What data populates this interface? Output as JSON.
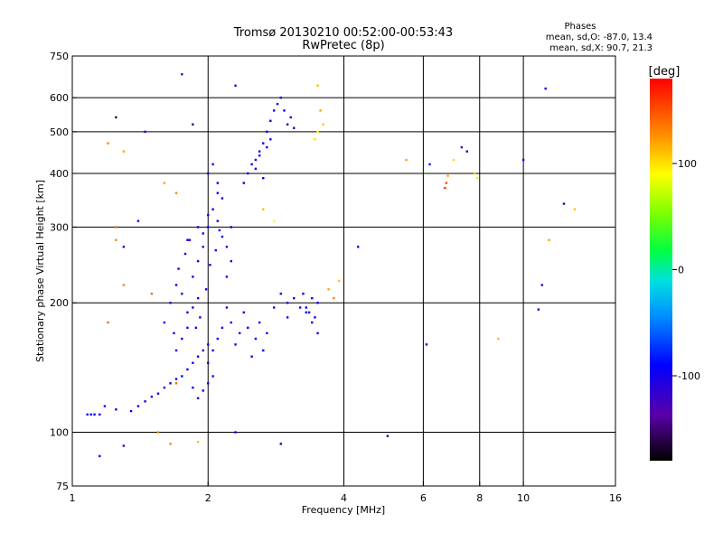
{
  "chart_data": {
    "type": "scatter",
    "title": "Tromsø 20130210 00:52:00-00:53:43",
    "subtitle": "RwPretec (8p)",
    "xlabel": "Frequency [MHz]",
    "ylabel": "Stationary phase Virtual Height [km]",
    "x_scale": "log",
    "y_scale": "log",
    "xlim": [
      1,
      16
    ],
    "ylim": [
      75,
      750
    ],
    "x_ticks": [
      1,
      2,
      4,
      6,
      8,
      10,
      16
    ],
    "y_ticks": [
      75,
      100,
      200,
      300,
      400,
      500,
      600,
      750
    ],
    "grid_x": [
      2,
      4,
      6,
      8,
      10
    ],
    "grid_y": [
      100,
      200,
      300,
      400,
      500,
      600
    ],
    "grid": true,
    "stats_header": "Phases",
    "stats_lines": [
      "mean, sd,O: -87.0, 13.4",
      "mean, sd,X: 90.7, 21.3"
    ],
    "colorbar": {
      "label": "[deg]",
      "range": [
        -180,
        180
      ],
      "ticks": [
        100,
        0,
        -100
      ],
      "placement": "right"
    },
    "series": [
      {
        "points": [
          [
            1.08,
            110,
            -95
          ],
          [
            1.1,
            110,
            -95
          ],
          [
            1.12,
            110,
            -90
          ],
          [
            1.15,
            110,
            -90
          ],
          [
            1.18,
            115,
            -110
          ],
          [
            1.25,
            113,
            -100
          ],
          [
            1.35,
            112,
            -100
          ],
          [
            1.4,
            115,
            -95
          ],
          [
            1.45,
            118,
            -100
          ],
          [
            1.5,
            121,
            -95
          ],
          [
            1.55,
            123,
            -100
          ],
          [
            1.6,
            127,
            -95
          ],
          [
            1.65,
            130,
            -100
          ],
          [
            1.7,
            133,
            -95
          ],
          [
            1.75,
            135,
            -100
          ],
          [
            1.8,
            140,
            -100
          ],
          [
            1.85,
            145,
            -95
          ],
          [
            1.9,
            150,
            -100
          ],
          [
            1.95,
            155,
            -95
          ],
          [
            2.0,
            160,
            -100
          ],
          [
            1.6,
            180,
            -95
          ],
          [
            1.65,
            200,
            -100
          ],
          [
            1.7,
            220,
            -95
          ],
          [
            1.75,
            210,
            -100
          ],
          [
            1.8,
            190,
            -95
          ],
          [
            1.85,
            230,
            -100
          ],
          [
            1.9,
            250,
            -95
          ],
          [
            1.95,
            270,
            -100
          ],
          [
            2.0,
            300,
            -95
          ],
          [
            2.05,
            330,
            -100
          ],
          [
            2.1,
            360,
            -95
          ],
          [
            2.15,
            350,
            -100
          ],
          [
            2.0,
            400,
            -95
          ],
          [
            2.05,
            420,
            -100
          ],
          [
            2.1,
            380,
            -95
          ],
          [
            1.68,
            170,
            -100
          ],
          [
            1.72,
            240,
            -95
          ],
          [
            1.78,
            260,
            -100
          ],
          [
            1.82,
            280,
            -95
          ],
          [
            1.88,
            175,
            -100
          ],
          [
            1.92,
            185,
            -95
          ],
          [
            1.98,
            215,
            -100
          ],
          [
            2.02,
            245,
            -95
          ],
          [
            2.08,
            265,
            -100
          ],
          [
            2.12,
            295,
            -95
          ],
          [
            2.0,
            145,
            -100
          ],
          [
            2.05,
            155,
            -95
          ],
          [
            2.1,
            165,
            -100
          ],
          [
            2.15,
            175,
            -95
          ],
          [
            2.2,
            195,
            -100
          ],
          [
            2.25,
            180,
            -95
          ],
          [
            2.3,
            160,
            -100
          ],
          [
            2.35,
            170,
            -95
          ],
          [
            2.4,
            190,
            -100
          ],
          [
            2.45,
            175,
            -95
          ],
          [
            2.5,
            150,
            -100
          ],
          [
            2.55,
            165,
            -95
          ],
          [
            2.6,
            180,
            -100
          ],
          [
            2.65,
            155,
            -95
          ],
          [
            2.7,
            170,
            -100
          ],
          [
            2.4,
            380,
            -100
          ],
          [
            2.45,
            400,
            -95
          ],
          [
            2.5,
            420,
            -100
          ],
          [
            2.55,
            430,
            -95
          ],
          [
            2.6,
            450,
            -100
          ],
          [
            2.65,
            470,
            -95
          ],
          [
            2.7,
            500,
            -100
          ],
          [
            2.75,
            530,
            -95
          ],
          [
            2.8,
            560,
            -100
          ],
          [
            2.85,
            580,
            -95
          ],
          [
            2.9,
            600,
            -100
          ],
          [
            2.95,
            560,
            -95
          ],
          [
            3.0,
            520,
            -100
          ],
          [
            3.05,
            540,
            -95
          ],
          [
            3.1,
            510,
            -100
          ],
          [
            2.8,
            195,
            -100
          ],
          [
            2.9,
            210,
            -95
          ],
          [
            3.0,
            200,
            -100
          ],
          [
            3.1,
            205,
            -95
          ],
          [
            3.2,
            195,
            -100
          ],
          [
            3.3,
            190,
            -95
          ],
          [
            3.4,
            180,
            -100
          ],
          [
            3.5,
            170,
            -95
          ],
          [
            3.5,
            200,
            -95
          ],
          [
            3.45,
            185,
            -100
          ],
          [
            6.7,
            370,
            160
          ],
          [
            6.75,
            380,
            150
          ],
          [
            6.8,
            395,
            120
          ],
          [
            7.0,
            430,
            100
          ],
          [
            7.3,
            460,
            -110
          ],
          [
            7.8,
            400,
            110
          ],
          [
            7.9,
            390,
            100
          ],
          [
            5.5,
            430,
            120
          ],
          [
            6.2,
            420,
            -80
          ],
          [
            7.5,
            450,
            -150
          ],
          [
            1.25,
            540,
            -160
          ],
          [
            1.2,
            470,
            130
          ],
          [
            1.3,
            450,
            120
          ],
          [
            1.45,
            500,
            -120
          ],
          [
            1.85,
            520,
            -150
          ],
          [
            1.75,
            680,
            -80
          ],
          [
            2.3,
            640,
            -110
          ],
          [
            3.5,
            640,
            110
          ],
          [
            3.55,
            560,
            120
          ],
          [
            3.6,
            520,
            110
          ],
          [
            3.45,
            480,
            100
          ],
          [
            3.5,
            500,
            90
          ],
          [
            1.6,
            380,
            120
          ],
          [
            1.7,
            360,
            130
          ],
          [
            2.65,
            330,
            110
          ],
          [
            2.8,
            310,
            90
          ],
          [
            1.25,
            300,
            140
          ],
          [
            1.3,
            270,
            -150
          ],
          [
            1.25,
            280,
            130
          ],
          [
            1.4,
            310,
            -100
          ],
          [
            4.3,
            270,
            -90
          ],
          [
            3.9,
            225,
            110
          ],
          [
            3.7,
            215,
            120
          ],
          [
            3.8,
            205,
            130
          ],
          [
            1.2,
            180,
            140
          ],
          [
            1.3,
            220,
            130
          ],
          [
            1.5,
            210,
            140
          ],
          [
            1.7,
            130,
            140
          ],
          [
            1.55,
            100,
            130
          ],
          [
            1.65,
            94,
            130
          ],
          [
            1.3,
            93,
            -120
          ],
          [
            1.15,
            88,
            -90
          ],
          [
            1.9,
            95,
            110
          ],
          [
            2.3,
            100,
            -90
          ],
          [
            2.9,
            94,
            -100
          ],
          [
            5.0,
            98,
            -150
          ],
          [
            6.1,
            160,
            -100
          ],
          [
            8.8,
            165,
            110
          ],
          [
            10.8,
            193,
            -110
          ],
          [
            11.0,
            220,
            -110
          ],
          [
            11.2,
            630,
            -90
          ],
          [
            10.0,
            430,
            -90
          ],
          [
            12.3,
            340,
            -150
          ],
          [
            13.0,
            330,
            110
          ],
          [
            11.4,
            280,
            120
          ],
          [
            1.8,
            280,
            -100
          ],
          [
            1.9,
            300,
            -95
          ],
          [
            2.0,
            320,
            -100
          ],
          [
            1.95,
            290,
            -95
          ],
          [
            2.1,
            310,
            -100
          ],
          [
            2.6,
            440,
            -95
          ],
          [
            2.55,
            410,
            -100
          ],
          [
            2.7,
            460,
            -95
          ],
          [
            2.75,
            480,
            -100
          ],
          [
            2.65,
            390,
            -95
          ],
          [
            1.9,
            120,
            -100
          ],
          [
            1.95,
            125,
            -95
          ],
          [
            2.0,
            130,
            -100
          ],
          [
            1.85,
            127,
            -95
          ],
          [
            2.05,
            135,
            -100
          ],
          [
            1.7,
            155,
            -95
          ],
          [
            1.75,
            165,
            -100
          ],
          [
            1.8,
            175,
            -95
          ],
          [
            1.85,
            195,
            -100
          ],
          [
            1.9,
            205,
            -95
          ],
          [
            2.2,
            230,
            -100
          ],
          [
            2.25,
            250,
            -95
          ],
          [
            2.2,
            270,
            -100
          ],
          [
            2.15,
            285,
            -95
          ],
          [
            2.25,
            300,
            -100
          ],
          [
            3.3,
            195,
            -100
          ],
          [
            3.4,
            205,
            -95
          ],
          [
            3.35,
            190,
            -100
          ],
          [
            3.25,
            210,
            -95
          ],
          [
            3.0,
            185,
            -100
          ]
        ]
      }
    ]
  }
}
